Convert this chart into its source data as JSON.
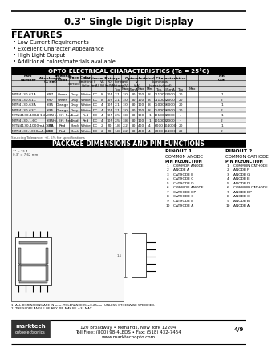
{
  "title": "0.3\" Single Digit Display",
  "features_header": "FEATURES",
  "features": [
    "Low Current Requirements",
    "Excellent Character Appearance",
    "High Light Output",
    "Additional colors/materials available"
  ],
  "opto_header": "OPTO-ELECTRICAL CHARACTERISTICS (Ta = 25°C)",
  "table_rows": [
    [
      "MTN4130-61A",
      "697",
      "Green",
      "Gray",
      "White",
      "DC",
      "8",
      "105",
      "2.1",
      "3.0",
      "20",
      "100",
      "8",
      "01100",
      "52000",
      "20",
      "1"
    ],
    [
      "MTN4130-61C",
      "697",
      "Green",
      "Gray",
      "White",
      "DC",
      "8",
      "105",
      "2.1",
      "3.0",
      "20",
      "100",
      "8",
      "01100",
      "52000",
      "20",
      "2"
    ],
    [
      "MTN4130-63A",
      "635",
      "Orange",
      "Gray",
      "White",
      "DC",
      "4",
      "105",
      "2.1",
      "3.0",
      "20",
      "100",
      "8",
      "05000",
      "56000",
      "20",
      "1"
    ],
    [
      "MTN4130-63C",
      "635",
      "Orange",
      "Gray",
      "White",
      "DC",
      "4",
      "105",
      "2.1",
      "3.0",
      "20",
      "100",
      "8",
      "05000",
      "56000",
      "20",
      "2"
    ],
    [
      "MTN4130-100A 1.2a",
      "635",
      "Hi. Eff. Red",
      "Grad",
      "Red",
      "DC",
      "4",
      "105",
      "2.5",
      "3.8",
      "20",
      "100",
      "1",
      "10100",
      "32000",
      "-",
      "1"
    ],
    [
      "MTN4130-1.6C",
      "635",
      "Hi. Eff. Red",
      "Grad",
      "Red",
      "DC",
      "4",
      "105",
      "2.5",
      "3.8",
      "20",
      "100",
      "1",
      "10100",
      "32000",
      "-",
      "2"
    ],
    [
      "MTN4130-1000mA 1.7A",
      "660",
      "Red",
      "Black",
      "White",
      "DC",
      "2",
      "70",
      "1.8",
      "2.2",
      "20",
      "400",
      "4",
      "6000",
      "104000",
      "20",
      "1"
    ],
    [
      "MTN4130-1000mA-1.0C",
      "660",
      "Red",
      "Black",
      "White",
      "DC",
      "2",
      "70",
      "1.8",
      "2.2",
      "20",
      "400",
      "4",
      "6000",
      "104000",
      "20",
      "2"
    ]
  ],
  "package_header": "PACKAGE DIMENSIONS AND PIN FUNCTIONS",
  "pinout1_header": "PINOUT 1",
  "pinout1_sub": "COMMON ANODE",
  "pinout1_rows": [
    [
      "1",
      "COMMON ANODE"
    ],
    [
      "2",
      "ANODE A"
    ],
    [
      "3",
      "CATHODE B"
    ],
    [
      "4",
      "CATHODE C"
    ],
    [
      "5",
      "CATHODE D"
    ],
    [
      "6",
      "COMMON ANODE"
    ],
    [
      "7",
      "CATHODE DP"
    ],
    [
      "8",
      "CATHODE C"
    ],
    [
      "9",
      "CATHODE B"
    ],
    [
      "10",
      "CATHODE A"
    ]
  ],
  "pinout2_header": "PINOUT 2",
  "pinout2_sub": "COMMON CATHODE",
  "pinout2_rows": [
    [
      "1",
      "COMMON CATHODE"
    ],
    [
      "2",
      "ANODE F"
    ],
    [
      "3",
      "ANODE G"
    ],
    [
      "4",
      "ANODE E"
    ],
    [
      "5",
      "ANODE D"
    ],
    [
      "6",
      "COMMON CATHODE"
    ],
    [
      "7",
      "ANODE DP"
    ],
    [
      "8",
      "ANODE C"
    ],
    [
      "9",
      "ANODE B"
    ],
    [
      "10",
      "ANODE A"
    ]
  ],
  "footer_address": "120 Broadway • Menands, New York 12204",
  "footer_contact": "Toll Free: (800) 98-4LEDS • Fax: (518) 432-7454",
  "footer_web": "www.marktechopto.com",
  "footer_page": "4/9",
  "note1": "1. ALL DIMENSIONS ARE IN mm. TOLERANCE IS ±0.25mm UNLESS OTHERWISE SPECIFIED.",
  "note2": "2. THE SLOPE ANGLE OF ANY PIN MAY BE ±3° MAX.",
  "bg_color": "#ffffff"
}
